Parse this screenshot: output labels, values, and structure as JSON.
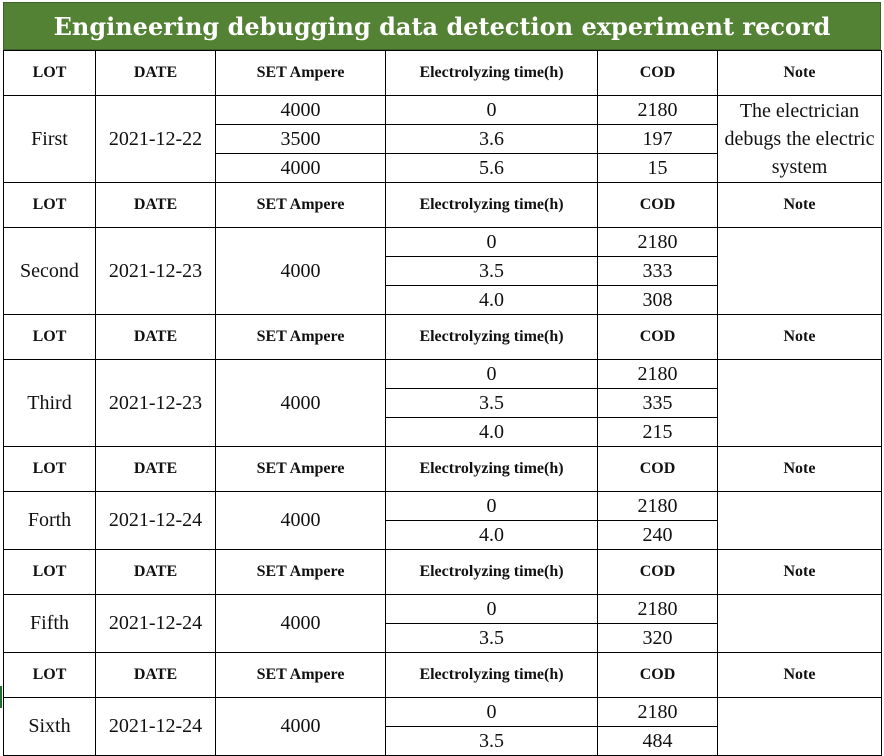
{
  "title": "Engineering debugging data detection experiment record",
  "headers": {
    "lot": "LOT",
    "date": "DATE",
    "set_ampere": "SET Ampere",
    "electrolyzing_time": "Electrolyzing time(h)",
    "cod": "COD",
    "note": "Note"
  },
  "lots": [
    {
      "lot": "First",
      "date": "2021-12-22",
      "rows": [
        {
          "ampere": "4000",
          "time": "0",
          "cod": "2180"
        },
        {
          "ampere": "3500",
          "time": "3.6",
          "cod": "197"
        },
        {
          "ampere": "4000",
          "time": "5.6",
          "cod": "15"
        }
      ],
      "note": "The electrician debugs the electric system"
    },
    {
      "lot": "Second",
      "date": "2021-12-23",
      "ampere": "4000",
      "rows": [
        {
          "time": "0",
          "cod": "2180"
        },
        {
          "time": "3.5",
          "cod": "333"
        },
        {
          "time": "4.0",
          "cod": "308"
        }
      ],
      "note": ""
    },
    {
      "lot": "Third",
      "date": "2021-12-23",
      "ampere": "4000",
      "rows": [
        {
          "time": "0",
          "cod": "2180"
        },
        {
          "time": "3.5",
          "cod": "335"
        },
        {
          "time": "4.0",
          "cod": "215"
        }
      ],
      "note": ""
    },
    {
      "lot": "Forth",
      "date": "2021-12-24",
      "ampere": "4000",
      "rows": [
        {
          "time": "0",
          "cod": "2180"
        },
        {
          "time": "4.0",
          "cod": "240"
        }
      ],
      "note": ""
    },
    {
      "lot": "Fifth",
      "date": "2021-12-24",
      "ampere": "4000",
      "rows": [
        {
          "time": "0",
          "cod": "2180"
        },
        {
          "time": "3.5",
          "cod": "320"
        }
      ],
      "note": ""
    },
    {
      "lot": "Sixth",
      "date": "2021-12-24",
      "ampere": "4000",
      "rows": [
        {
          "time": "0",
          "cod": "2180"
        },
        {
          "time": "3.5",
          "cod": "484"
        }
      ],
      "note": ""
    }
  ]
}
